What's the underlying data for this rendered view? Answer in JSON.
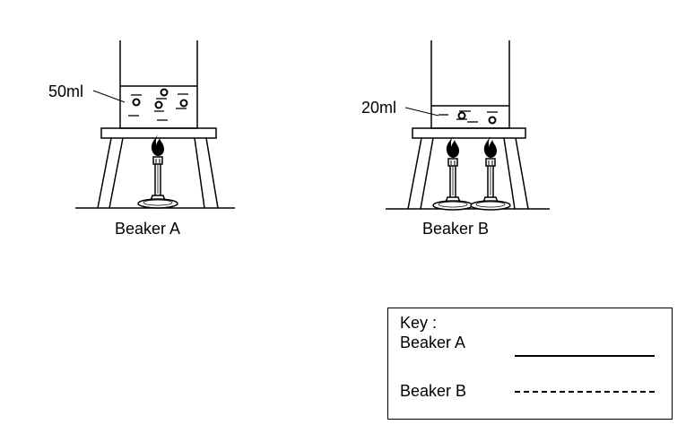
{
  "beaker_a": {
    "caption": "Beaker A",
    "volume_label": "50ml",
    "burners": 1
  },
  "beaker_b": {
    "caption": "Beaker B",
    "volume_label": "20ml",
    "burners": 2
  },
  "key": {
    "title": "Key :",
    "entries": [
      {
        "label": "Beaker A",
        "line_style": "solid"
      },
      {
        "label": "Beaker B",
        "line_style": "dashed"
      }
    ]
  },
  "colors": {
    "stroke": "#000000",
    "background": "#ffffff"
  }
}
